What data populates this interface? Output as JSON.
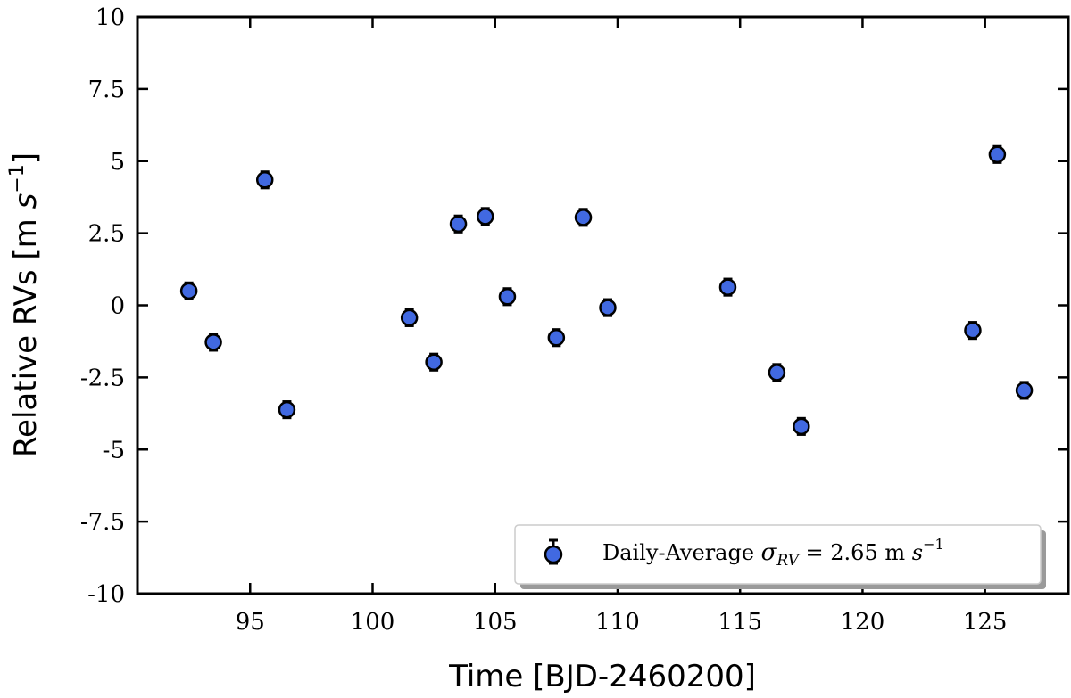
{
  "chart_data": {
    "type": "scatter",
    "xlabel": "Time [BJD-2460200]",
    "ylabel_prefix": "Relative RVs [m ",
    "ylabel_unit_base": "s",
    "ylabel_unit_exp": "−1",
    "ylabel_suffix": "]",
    "xlim": [
      90.4,
      128.4
    ],
    "ylim": [
      -10,
      10
    ],
    "xticks": [
      {
        "value": 95,
        "label": "95"
      },
      {
        "value": 100,
        "label": "100"
      },
      {
        "value": 105,
        "label": "105"
      },
      {
        "value": 110,
        "label": "110"
      },
      {
        "value": 115,
        "label": "115"
      },
      {
        "value": 120,
        "label": "120"
      },
      {
        "value": 125,
        "label": "125"
      }
    ],
    "yticks": [
      {
        "value": 10,
        "label": "10"
      },
      {
        "value": 7.5,
        "label": "7.5"
      },
      {
        "value": 5,
        "label": "5"
      },
      {
        "value": 2.5,
        "label": "2.5"
      },
      {
        "value": 0,
        "label": "0"
      },
      {
        "value": -2.5,
        "label": "-2.5"
      },
      {
        "value": -5,
        "label": "-5"
      },
      {
        "value": -7.5,
        "label": "-7.5"
      },
      {
        "value": -10,
        "label": "-10"
      }
    ],
    "grid": false,
    "legend_position": "lower-right",
    "legend": {
      "text_prefix": "Daily-Average ",
      "sigma": "σ",
      "sigma_sub": "RV",
      "text_mid": " = 2.65 m ",
      "unit_base": "s",
      "unit_exp": "−1"
    },
    "series": [
      {
        "marker_color": "#4169e1",
        "x": [
          92.5,
          93.5,
          95.6,
          96.5,
          101.5,
          102.5,
          103.5,
          104.6,
          105.5,
          107.5,
          108.6,
          109.6,
          114.5,
          116.5,
          117.5,
          124.5,
          125.5,
          126.6
        ],
        "y": [
          0.5,
          -1.28,
          4.35,
          -3.62,
          -0.43,
          -1.97,
          2.82,
          3.08,
          0.3,
          -1.12,
          3.05,
          -0.08,
          0.63,
          -2.33,
          -4.2,
          -0.87,
          5.23,
          -2.95
        ],
        "yerr": [
          0.28,
          0.28,
          0.28,
          0.28,
          0.28,
          0.28,
          0.28,
          0.28,
          0.28,
          0.28,
          0.28,
          0.28,
          0.28,
          0.28,
          0.28,
          0.28,
          0.28,
          0.28
        ]
      }
    ]
  }
}
